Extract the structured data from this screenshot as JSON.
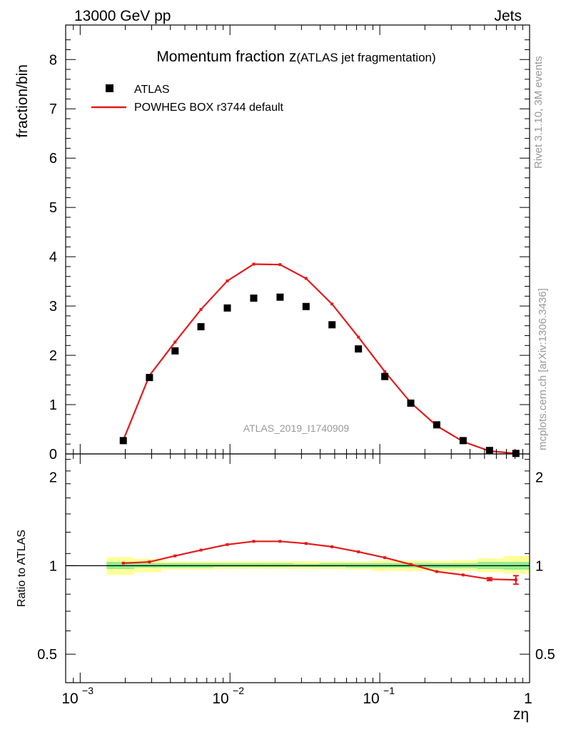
{
  "header": {
    "left": "13000 GeV pp",
    "right": "Jets"
  },
  "side_text": {
    "rivet": "Rivet 3.1.10,  3M events",
    "mcplots": "mcplots.cern.ch [arXiv:1306.3436]"
  },
  "analysis_id": "ATLAS_2019_I1740909",
  "colors": {
    "data": "#000000",
    "mc": "#e41a1c",
    "band_inner": "#90ee90",
    "band_outer": "#ffff99",
    "watermark": "#999999"
  },
  "chart_data": [
    {
      "type": "scatter+line",
      "title": "Momentum fraction z",
      "title_suffix": "(ATLAS jet fragmentation)",
      "xlabel": "zη",
      "ylabel": "fraction/bin",
      "xscale": "log",
      "xlim": [
        0.0008,
        1
      ],
      "ylim": [
        0,
        8.7
      ],
      "x_tick_labels": [
        "10",
        "−3",
        "10",
        "−2",
        "10",
        "−1",
        "1"
      ],
      "y_ticks": [
        0,
        1,
        2,
        3,
        4,
        5,
        6,
        7,
        8
      ],
      "legend": {
        "position": "top-left",
        "entries": [
          "ATLAS",
          "POWHEG BOX r3744 default"
        ]
      },
      "x": [
        0.00194,
        0.0029,
        0.0043,
        0.0064,
        0.0096,
        0.0144,
        0.0216,
        0.0322,
        0.048,
        0.072,
        0.108,
        0.161,
        0.24,
        0.36,
        0.54,
        0.81
      ],
      "series": [
        {
          "name": "ATLAS",
          "style": "markers",
          "values": [
            0.27,
            1.55,
            2.09,
            2.58,
            2.96,
            3.16,
            3.18,
            2.99,
            2.62,
            2.13,
            1.57,
            1.03,
            0.59,
            0.27,
            0.07,
            0.01
          ]
        },
        {
          "name": "POWHEG BOX r3744 default",
          "style": "line",
          "values": [
            0.28,
            1.59,
            2.27,
            2.93,
            3.51,
            3.85,
            3.84,
            3.56,
            3.04,
            2.37,
            1.67,
            1.04,
            0.57,
            0.25,
            0.06,
            0.01
          ]
        }
      ]
    },
    {
      "type": "ratio",
      "ylabel": "Ratio to ATLAS",
      "xscale": "log",
      "yscale": "log",
      "xlim": [
        0.0008,
        1
      ],
      "ylim": [
        0.4,
        2.4
      ],
      "y_ticks": [
        0.5,
        1,
        2
      ],
      "y_tick_labels": [
        "0.5",
        "1",
        "2"
      ],
      "x": [
        0.00194,
        0.0029,
        0.0043,
        0.0064,
        0.0096,
        0.0144,
        0.0216,
        0.0322,
        0.048,
        0.072,
        0.108,
        0.161,
        0.24,
        0.36,
        0.54,
        0.81
      ],
      "x_edges": [
        0.0015,
        0.0023,
        0.0035,
        0.0052,
        0.0078,
        0.0117,
        0.0175,
        0.0263,
        0.0395,
        0.059,
        0.089,
        0.133,
        0.2,
        0.3,
        0.45,
        0.67,
        1.0
      ],
      "band_inner": [
        [
          0.975,
          1.03
        ],
        [
          0.985,
          1.02
        ],
        [
          0.985,
          1.02
        ],
        [
          0.985,
          1.02
        ],
        [
          0.99,
          1.02
        ],
        [
          0.99,
          1.02
        ],
        [
          0.99,
          1.02
        ],
        [
          0.99,
          1.015
        ],
        [
          0.99,
          1.02
        ],
        [
          0.985,
          1.02
        ],
        [
          0.985,
          1.02
        ],
        [
          0.985,
          1.02
        ],
        [
          0.98,
          1.02
        ],
        [
          0.98,
          1.02
        ],
        [
          0.975,
          1.03
        ],
        [
          0.97,
          1.03
        ]
      ],
      "band_outer": [
        [
          0.93,
          1.07
        ],
        [
          0.95,
          1.055
        ],
        [
          0.97,
          1.035
        ],
        [
          0.97,
          1.035
        ],
        [
          0.975,
          1.035
        ],
        [
          0.975,
          1.035
        ],
        [
          0.975,
          1.035
        ],
        [
          0.975,
          1.035
        ],
        [
          0.975,
          1.035
        ],
        [
          0.97,
          1.035
        ],
        [
          0.96,
          1.04
        ],
        [
          0.96,
          1.04
        ],
        [
          0.96,
          1.04
        ],
        [
          0.96,
          1.045
        ],
        [
          0.95,
          1.06
        ],
        [
          0.94,
          1.08
        ]
      ],
      "series": [
        {
          "name": "POWHEG BOX r3744 default / ATLAS",
          "values": [
            1.02,
            1.03,
            1.08,
            1.13,
            1.18,
            1.21,
            1.21,
            1.19,
            1.16,
            1.115,
            1.065,
            1.01,
            0.955,
            0.93,
            0.9,
            0.895
          ],
          "errors": [
            0,
            0,
            0,
            0,
            0,
            0,
            0,
            0,
            0,
            0,
            0,
            0,
            0,
            0,
            0.01,
            0.03
          ]
        }
      ]
    }
  ]
}
